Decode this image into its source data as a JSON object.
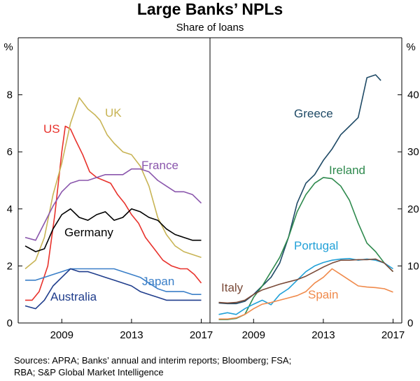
{
  "title": "Large Banks’ NPLs",
  "subtitle": "Share of loans",
  "sources": {
    "line1": "Sources: APRA; Banks’ annual and interim reports; Bloomberg; FSA;",
    "line2": "RBA; S&P Global Market Intelligence"
  },
  "chart_data": [
    {
      "type": "line",
      "panel": "left",
      "ylabel": "%",
      "ylim": [
        0,
        10
      ],
      "yticks": [
        0,
        2,
        4,
        6,
        8
      ],
      "xlim": [
        2006.5,
        2017.5
      ],
      "xticks": [
        2009,
        2013,
        2017
      ],
      "colors": {
        "US": "#e8322c",
        "UK": "#c8b455",
        "France": "#8a56ac",
        "Germany": "#000000",
        "Japan": "#3a7fc8",
        "Australia": "#1f3d8c"
      },
      "series": [
        {
          "name": "US",
          "label": "US",
          "x": [
            2006.9,
            2007.3,
            2007.7,
            2008.2,
            2008.6,
            2009.0,
            2009.2,
            2009.5,
            2009.8,
            2010.2,
            2010.6,
            2011.0,
            2011.4,
            2011.8,
            2012.2,
            2012.6,
            2013.0,
            2013.4,
            2013.8,
            2014.3,
            2014.8,
            2015.3,
            2015.8,
            2016.2,
            2016.6,
            2017.0
          ],
          "y": [
            0.8,
            0.8,
            1.1,
            2.0,
            3.8,
            6.0,
            6.9,
            6.8,
            6.4,
            5.9,
            5.3,
            5.1,
            5.0,
            4.9,
            4.5,
            4.2,
            3.8,
            3.5,
            3.0,
            2.6,
            2.2,
            2.0,
            1.9,
            1.9,
            1.7,
            1.4
          ]
        },
        {
          "name": "UK",
          "label": "UK",
          "x": [
            2006.9,
            2007.5,
            2008.0,
            2008.5,
            2009.0,
            2009.5,
            2010.0,
            2010.5,
            2010.9,
            2011.2,
            2011.6,
            2012.0,
            2012.5,
            2013.0,
            2013.5,
            2014.0,
            2014.5,
            2015.0,
            2015.5,
            2016.0,
            2016.5,
            2017.0
          ],
          "y": [
            1.9,
            2.2,
            3.0,
            4.5,
            5.6,
            7.0,
            7.9,
            7.5,
            7.3,
            7.1,
            6.6,
            6.3,
            6.0,
            5.9,
            5.5,
            4.8,
            3.7,
            3.1,
            2.7,
            2.5,
            2.4,
            2.3
          ]
        },
        {
          "name": "France",
          "label": "France",
          "x": [
            2006.9,
            2007.5,
            2008.0,
            2008.5,
            2009.0,
            2009.5,
            2010.0,
            2010.5,
            2011.0,
            2011.5,
            2012.0,
            2012.5,
            2013.0,
            2013.5,
            2014.0,
            2014.5,
            2015.0,
            2015.5,
            2016.0,
            2016.5,
            2017.0
          ],
          "y": [
            3.0,
            2.9,
            3.5,
            4.1,
            4.6,
            4.9,
            5.0,
            5.0,
            5.1,
            5.2,
            5.2,
            5.2,
            5.4,
            5.4,
            5.3,
            5.0,
            4.8,
            4.6,
            4.6,
            4.5,
            4.2
          ]
        },
        {
          "name": "Germany",
          "label": "Germany",
          "x": [
            2006.9,
            2007.5,
            2008.0,
            2008.5,
            2009.0,
            2009.5,
            2010.0,
            2010.5,
            2011.0,
            2011.5,
            2012.0,
            2012.5,
            2013.0,
            2013.5,
            2014.0,
            2014.5,
            2015.0,
            2015.5,
            2016.0,
            2016.5,
            2017.0
          ],
          "y": [
            2.7,
            2.5,
            2.6,
            3.3,
            3.8,
            4.0,
            3.7,
            3.6,
            3.8,
            3.9,
            3.6,
            3.7,
            4.0,
            3.9,
            3.7,
            3.6,
            3.3,
            3.1,
            3.0,
            2.9,
            2.9
          ]
        },
        {
          "name": "Japan",
          "label": "Japan",
          "x": [
            2006.9,
            2007.5,
            2008.0,
            2008.5,
            2009.0,
            2009.5,
            2010.0,
            2010.5,
            2011.0,
            2011.5,
            2012.0,
            2012.5,
            2013.0,
            2013.5,
            2014.0,
            2014.5,
            2015.0,
            2015.5,
            2016.0,
            2016.5,
            2017.0
          ],
          "y": [
            1.5,
            1.5,
            1.6,
            1.7,
            1.8,
            1.9,
            1.9,
            1.9,
            1.9,
            1.9,
            1.9,
            1.8,
            1.7,
            1.6,
            1.4,
            1.2,
            1.1,
            1.1,
            1.1,
            1.0,
            1.0
          ]
        },
        {
          "name": "Australia",
          "label": "Australia",
          "x": [
            2006.9,
            2007.5,
            2008.0,
            2008.5,
            2009.0,
            2009.5,
            2010.0,
            2010.5,
            2011.0,
            2011.5,
            2012.0,
            2012.5,
            2013.0,
            2013.5,
            2014.0,
            2014.5,
            2015.0,
            2015.5,
            2016.0,
            2016.5,
            2017.0
          ],
          "y": [
            0.6,
            0.5,
            0.8,
            1.3,
            1.6,
            1.9,
            1.8,
            1.8,
            1.7,
            1.6,
            1.5,
            1.4,
            1.3,
            1.1,
            1.0,
            0.9,
            0.8,
            0.8,
            0.8,
            0.8,
            0.8
          ]
        }
      ]
    },
    {
      "type": "line",
      "panel": "right",
      "ylabel": "%",
      "ylim": [
        0,
        50
      ],
      "yticks": [
        0,
        10,
        20,
        30,
        40
      ],
      "xlim": [
        2006.5,
        2017.5
      ],
      "xticks": [
        2009,
        2013,
        2017
      ],
      "colors": {
        "Greece": "#1f4a66",
        "Ireland": "#2f8a4e",
        "Portugal": "#22a1d8",
        "Italy": "#7a4a38",
        "Spain": "#f08a4b"
      },
      "series": [
        {
          "name": "Greece",
          "label": "Greece",
          "x": [
            2007.0,
            2007.5,
            2008.0,
            2008.5,
            2009.0,
            2009.5,
            2010.0,
            2010.5,
            2011.0,
            2011.5,
            2012.0,
            2012.5,
            2013.0,
            2013.5,
            2014.0,
            2014.5,
            2015.0,
            2015.5,
            2016.0,
            2016.3
          ],
          "y": [
            3.5,
            3.4,
            3.4,
            3.8,
            5.0,
            6.5,
            8.0,
            10.5,
            15.0,
            21.0,
            24.5,
            26.0,
            28.5,
            30.5,
            33.0,
            34.5,
            36.0,
            43.0,
            43.5,
            42.5
          ]
        },
        {
          "name": "Ireland",
          "label": "Ireland",
          "x": [
            2007.0,
            2007.5,
            2008.0,
            2008.5,
            2009.0,
            2009.5,
            2010.0,
            2010.5,
            2011.0,
            2011.5,
            2012.0,
            2012.5,
            2013.0,
            2013.5,
            2014.0,
            2014.5,
            2015.0,
            2015.5,
            2016.0,
            2016.5,
            2017.0
          ],
          "y": [
            0.6,
            0.6,
            0.8,
            1.5,
            4.5,
            6.5,
            9.0,
            11.5,
            15.0,
            19.5,
            22.5,
            24.5,
            25.5,
            25.3,
            24.0,
            21.5,
            17.5,
            14.0,
            12.5,
            10.5,
            9.0
          ]
        },
        {
          "name": "Portugal",
          "label": "Portugal",
          "x": [
            2007.0,
            2007.5,
            2008.0,
            2008.5,
            2009.0,
            2009.5,
            2010.0,
            2010.5,
            2011.0,
            2011.5,
            2012.0,
            2012.5,
            2013.0,
            2013.5,
            2014.0,
            2014.5,
            2015.0,
            2015.5,
            2016.0,
            2016.5,
            2017.0
          ],
          "y": [
            1.5,
            1.8,
            1.5,
            2.5,
            3.3,
            4.0,
            3.2,
            5.0,
            6.0,
            7.5,
            9.0,
            10.0,
            10.6,
            11.0,
            11.2,
            11.3,
            11.0,
            11.2,
            11.0,
            10.5,
            9.5
          ]
        },
        {
          "name": "Italy",
          "label": "Italy",
          "x": [
            2007.0,
            2007.5,
            2008.0,
            2008.5,
            2009.0,
            2009.5,
            2010.0,
            2010.5,
            2011.0,
            2011.5,
            2012.0,
            2012.5,
            2013.0,
            2013.5,
            2014.0,
            2014.5,
            2015.0,
            2015.5,
            2016.0,
            2016.5,
            2017.0
          ],
          "y": [
            3.6,
            3.5,
            3.6,
            4.0,
            5.0,
            5.8,
            6.3,
            6.8,
            7.2,
            7.6,
            8.2,
            9.0,
            9.8,
            10.5,
            11.0,
            11.0,
            11.1,
            11.1,
            11.2,
            10.5,
            9.0
          ]
        },
        {
          "name": "Spain",
          "label": "Spain",
          "x": [
            2007.0,
            2007.5,
            2008.0,
            2008.5,
            2009.0,
            2009.5,
            2010.0,
            2010.5,
            2011.0,
            2011.5,
            2012.0,
            2012.5,
            2013.0,
            2013.5,
            2014.0,
            2014.5,
            2015.0,
            2015.5,
            2016.0,
            2016.5,
            2017.0
          ],
          "y": [
            0.7,
            0.7,
            0.9,
            1.5,
            2.5,
            3.3,
            3.6,
            4.0,
            4.4,
            4.8,
            5.5,
            7.0,
            8.0,
            9.5,
            8.5,
            7.5,
            6.5,
            6.3,
            6.2,
            6.0,
            5.4
          ]
        }
      ]
    }
  ]
}
